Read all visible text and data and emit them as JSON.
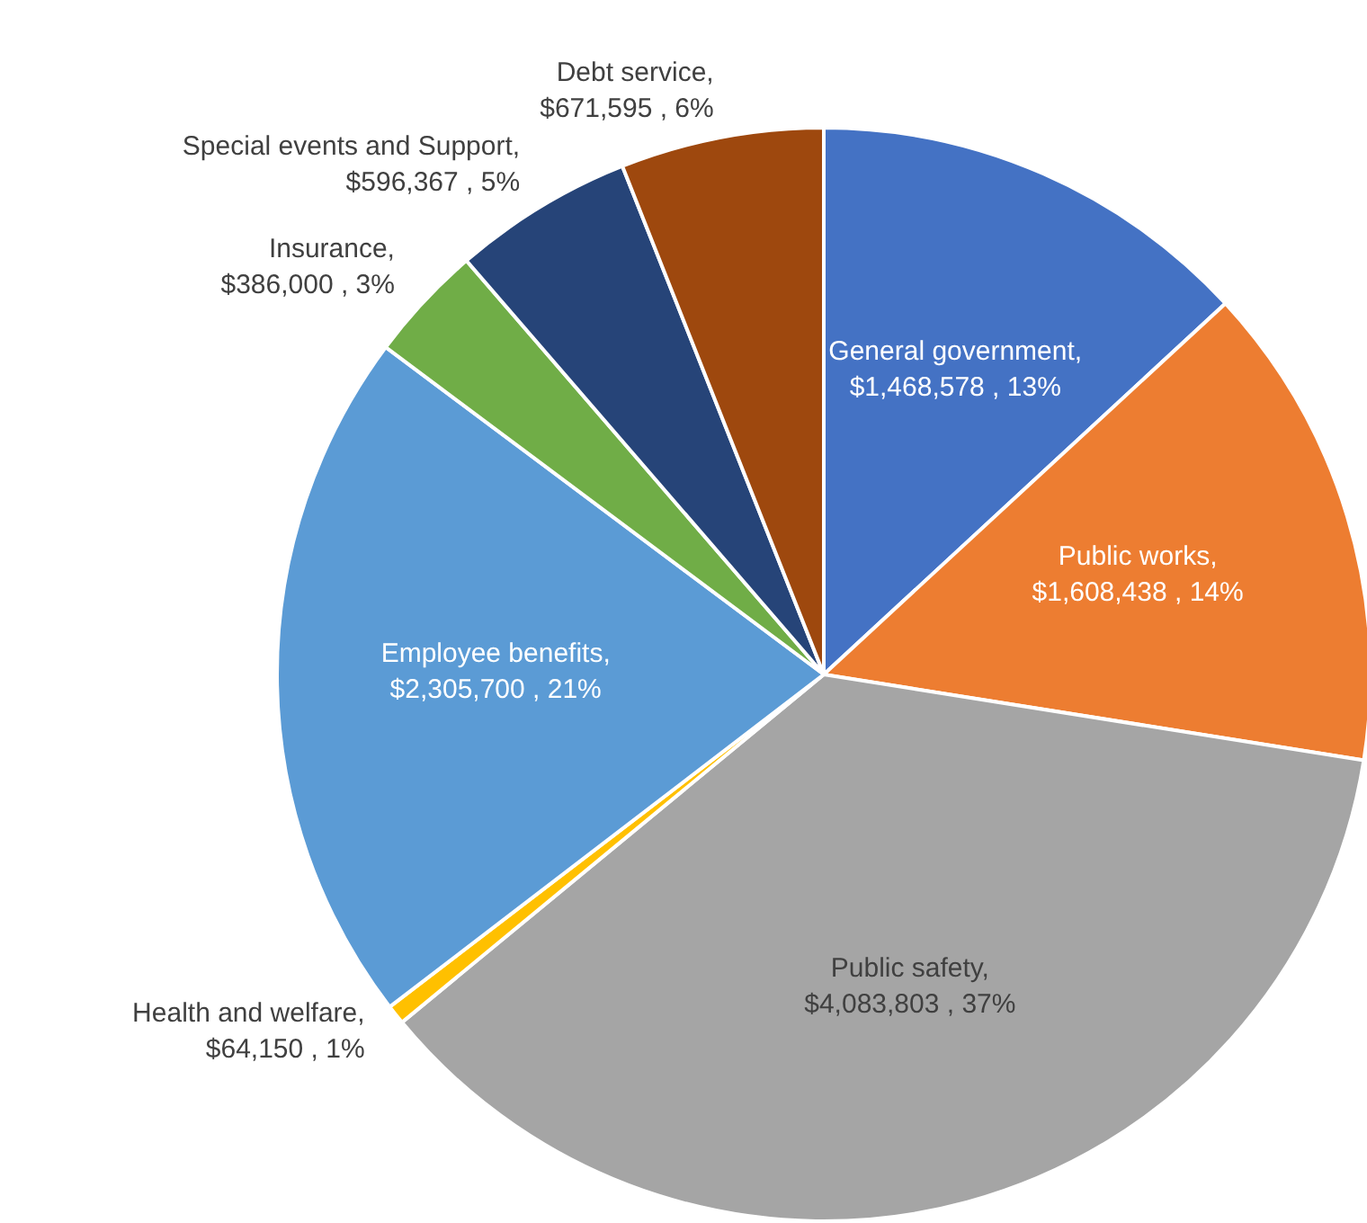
{
  "chart_data": {
    "type": "pie",
    "categories": [
      "General government",
      "Public works",
      "Public safety",
      "Health and welfare",
      "Employee benefits",
      "Insurance",
      "Special events and Support",
      "Debt service"
    ],
    "values": [
      1468578,
      1608438,
      4083803,
      64150,
      2305700,
      386000,
      596367,
      671595
    ],
    "value_labels": [
      ", $1,468,578 , 13%",
      ", $1,608,438 , 14%",
      ", $4,083,803 , 37%",
      ", $64,150 , 1%",
      ", $2,305,700 , 21%",
      ", $386,000 , 3%",
      ", $596,367 , 5%",
      ", $671,595 , 6%"
    ],
    "colors": [
      "#4472c4",
      "#ed7d31",
      "#a5a5a5",
      "#ffc000",
      "#5b9bd5",
      "#70ad47",
      "#264478",
      "#9e480e"
    ],
    "legend": false
  }
}
